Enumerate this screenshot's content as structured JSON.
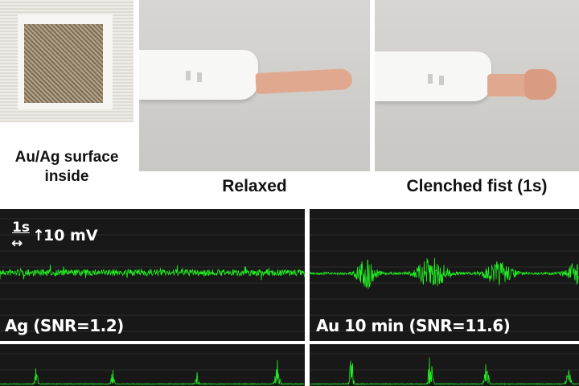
{
  "photos": {
    "fabric_caption_line1": "Au/Ag surface",
    "fabric_caption_line2": "inside",
    "relaxed_caption": "Relaxed",
    "clenched_caption": "Clenched fist (1s)"
  },
  "scale_bar": {
    "time": "1s",
    "voltage": "10 mV"
  },
  "panels": [
    {
      "label": "Ag (SNR=1.2)"
    },
    {
      "label": "Au 10 min (SNR=11.6)"
    }
  ],
  "colors": {
    "signal": "#22ee22",
    "panel_background": "#181818",
    "gridline": "#2c2c2c"
  }
}
